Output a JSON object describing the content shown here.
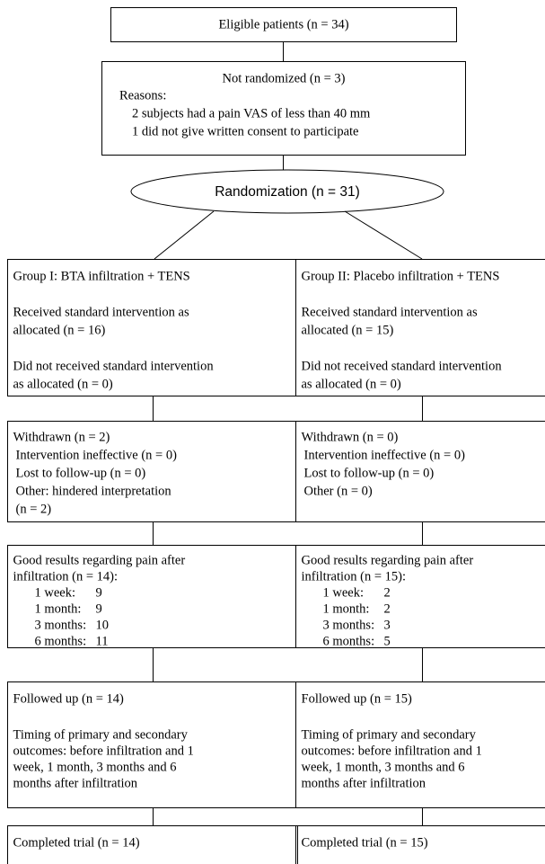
{
  "eligible": "Eligible patients (n = 34)",
  "not_randomized": {
    "title": "Not randomized (n = 3)",
    "reasons_label": "Reasons:",
    "reasons": [
      "2 subjects had a pain VAS of less than 40 mm",
      "1 did not give written consent to participate"
    ]
  },
  "randomization": "Randomization (n = 31)",
  "groups": [
    {
      "header": "Group I: BTA infiltration + TENS",
      "received": [
        "Received standard intervention as",
        "allocated (n = 16)"
      ],
      "not_received": [
        "Did not received standard intervention",
        "as allocated (n = 0)"
      ],
      "withdrawn": {
        "title": "Withdrawn (n = 2)",
        "items": [
          "Intervention ineffective (n = 0)",
          "Lost to follow-up (n = 0)",
          "Other: hindered interpretation",
          "(n = 2)"
        ]
      },
      "results": {
        "lines": [
          "Good results regarding pain after",
          "infiltration (n = 14):"
        ],
        "timepoints": [
          {
            "label": "1 week:",
            "value": "9"
          },
          {
            "label": "1 month:",
            "value": "9"
          },
          {
            "label": "3 months:",
            "value": "10"
          },
          {
            "label": "6 months:",
            "value": "11"
          }
        ]
      },
      "followed_up": {
        "title": "Followed up (n = 14)",
        "timing": [
          "Timing of primary and secondary",
          "outcomes: before infiltration and 1",
          "week, 1 month, 3 months and 6",
          "months after infiltration"
        ]
      },
      "completed": "Completed trial (n = 14)"
    },
    {
      "header": "Group II: Placebo infiltration + TENS",
      "received": [
        "Received standard intervention as",
        "allocated (n = 15)"
      ],
      "not_received": [
        "Did not received standard intervention",
        "as allocated (n = 0)"
      ],
      "withdrawn": {
        "title": "Withdrawn (n = 0)",
        "items": [
          "Intervention ineffective (n = 0)",
          "Lost to follow-up (n = 0)",
          "Other (n = 0)"
        ]
      },
      "results": {
        "lines": [
          "Good results regarding pain after",
          "infiltration (n = 15):"
        ],
        "timepoints": [
          {
            "label": "1 week:",
            "value": "2"
          },
          {
            "label": "1 month:",
            "value": "2"
          },
          {
            "label": "3 months:",
            "value": "3"
          },
          {
            "label": "6 months:",
            "value": "5"
          }
        ]
      },
      "followed_up": {
        "title": "Followed up (n = 15)",
        "timing": [
          "Timing of primary and secondary",
          "outcomes: before infiltration and 1",
          "week, 1 month, 3 months and 6",
          "months after infiltration"
        ]
      },
      "completed": "Completed trial (n = 15)"
    }
  ]
}
